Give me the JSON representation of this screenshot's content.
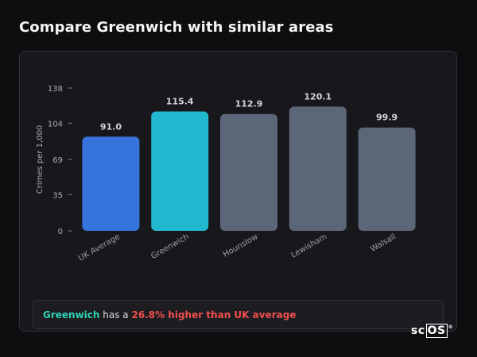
{
  "page_title": "Compare Greenwich with similar areas",
  "chart_data": {
    "type": "bar",
    "title": "",
    "xlabel": "",
    "ylabel": "Crimes per 1,000",
    "ylim": [
      0,
      138
    ],
    "yticks": [
      0,
      35,
      69,
      104,
      138
    ],
    "categories": [
      "UK Average",
      "Greenwich",
      "Hounslow",
      "Lewisham",
      "Walsall"
    ],
    "values": [
      91.0,
      115.4,
      112.9,
      120.1,
      99.9
    ],
    "value_labels": [
      "91.0",
      "115.4",
      "112.9",
      "120.1",
      "99.9"
    ],
    "bar_colors": [
      "#3674db",
      "#22b8cf",
      "#5b6678",
      "#5b6678",
      "#5b6678"
    ],
    "grid": false,
    "legend": "none"
  },
  "callout": {
    "area": "Greenwich",
    "middle": "has a",
    "comparison": "26.8% higher than UK average"
  },
  "logo": {
    "prefix": "sc",
    "boxed": "OS",
    "mark": "®"
  },
  "colors": {
    "background": "#0e0e11",
    "card": "#18181c",
    "area_accent": "#2fd3b4",
    "negative": "#f0504c"
  }
}
